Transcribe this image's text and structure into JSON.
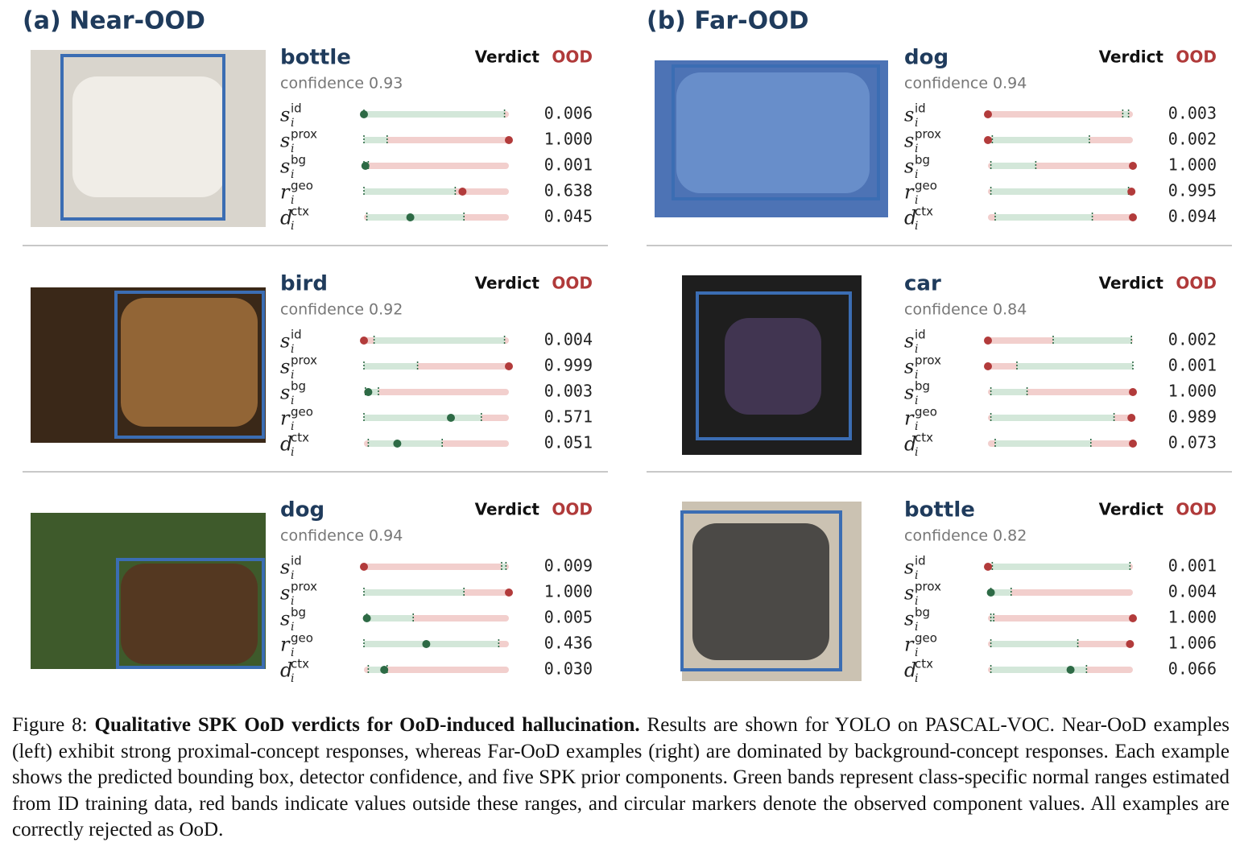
{
  "panels": [
    {
      "heading": "(a) Near-OOD",
      "examples": [
        {
          "class": "bottle",
          "verdict_label": "Verdict",
          "verdict": "OOD",
          "confidence": "confidence 0.93",
          "rows": [
            {
              "base": "s",
              "sub": "i",
              "sup": "id",
              "value": "0.006"
            },
            {
              "base": "s",
              "sub": "i",
              "sup": "prox",
              "value": "1.000"
            },
            {
              "base": "s",
              "sub": "i",
              "sup": "bg",
              "value": "0.001"
            },
            {
              "base": "r",
              "sub": "i",
              "sup": "geo",
              "value": "0.638"
            },
            {
              "base": "d",
              "sub": "i",
              "sup": "ctx",
              "value": "0.045"
            }
          ]
        },
        {
          "class": "bird",
          "verdict_label": "Verdict",
          "verdict": "OOD",
          "confidence": "confidence 0.92",
          "rows": [
            {
              "base": "s",
              "sub": "i",
              "sup": "id",
              "value": "0.004"
            },
            {
              "base": "s",
              "sub": "i",
              "sup": "prox",
              "value": "0.999"
            },
            {
              "base": "s",
              "sub": "i",
              "sup": "bg",
              "value": "0.003"
            },
            {
              "base": "r",
              "sub": "i",
              "sup": "geo",
              "value": "0.571"
            },
            {
              "base": "d",
              "sub": "i",
              "sup": "ctx",
              "value": "0.051"
            }
          ]
        },
        {
          "class": "dog",
          "verdict_label": "Verdict",
          "verdict": "OOD",
          "confidence": "confidence 0.94",
          "rows": [
            {
              "base": "s",
              "sub": "i",
              "sup": "id",
              "value": "0.009"
            },
            {
              "base": "s",
              "sub": "i",
              "sup": "prox",
              "value": "1.000"
            },
            {
              "base": "s",
              "sub": "i",
              "sup": "bg",
              "value": "0.005"
            },
            {
              "base": "r",
              "sub": "i",
              "sup": "geo",
              "value": "0.436"
            },
            {
              "base": "d",
              "sub": "i",
              "sup": "ctx",
              "value": "0.030"
            }
          ]
        }
      ]
    },
    {
      "heading": "(b) Far-OOD",
      "examples": [
        {
          "class": "dog",
          "verdict_label": "Verdict",
          "verdict": "OOD",
          "confidence": "confidence 0.94",
          "rows": [
            {
              "base": "s",
              "sub": "i",
              "sup": "id",
              "value": "0.003"
            },
            {
              "base": "s",
              "sub": "i",
              "sup": "prox",
              "value": "0.002"
            },
            {
              "base": "s",
              "sub": "i",
              "sup": "bg",
              "value": "1.000"
            },
            {
              "base": "r",
              "sub": "i",
              "sup": "geo",
              "value": "0.995"
            },
            {
              "base": "d",
              "sub": "i",
              "sup": "ctx",
              "value": "0.094"
            }
          ]
        },
        {
          "class": "car",
          "verdict_label": "Verdict",
          "verdict": "OOD",
          "confidence": "confidence 0.84",
          "rows": [
            {
              "base": "s",
              "sub": "i",
              "sup": "id",
              "value": "0.002"
            },
            {
              "base": "s",
              "sub": "i",
              "sup": "prox",
              "value": "0.001"
            },
            {
              "base": "s",
              "sub": "i",
              "sup": "bg",
              "value": "1.000"
            },
            {
              "base": "r",
              "sub": "i",
              "sup": "geo",
              "value": "0.989"
            },
            {
              "base": "d",
              "sub": "i",
              "sup": "ctx",
              "value": "0.073"
            }
          ]
        },
        {
          "class": "bottle",
          "verdict_label": "Verdict",
          "verdict": "OOD",
          "confidence": "confidence 0.82",
          "rows": [
            {
              "base": "s",
              "sub": "i",
              "sup": "id",
              "value": "0.001"
            },
            {
              "base": "s",
              "sub": "i",
              "sup": "prox",
              "value": "0.004"
            },
            {
              "base": "s",
              "sub": "i",
              "sup": "bg",
              "value": "1.000"
            },
            {
              "base": "r",
              "sub": "i",
              "sup": "geo",
              "value": "1.006"
            },
            {
              "base": "d",
              "sub": "i",
              "sup": "ctx",
              "value": "0.066"
            }
          ]
        }
      ]
    }
  ],
  "caption": {
    "label": "Figure 8:",
    "bold": "Qualitative SPK OoD verdicts for OoD-induced hallucination.",
    "text": "Results are shown for YOLO on PASCAL-VOC. Near-OoD examples (left) exhibit strong proximal-concept responses, whereas Far-OoD examples (right) are dominated by background-concept responses. Each example shows the predicted bounding box, detector confidence, and five SPK prior components. Green bands represent class-specific normal ranges estimated from ID training data, red bands indicate values outside these ranges, and circular markers denote the observed component values. All examples are correctly rejected as OoD."
  }
}
